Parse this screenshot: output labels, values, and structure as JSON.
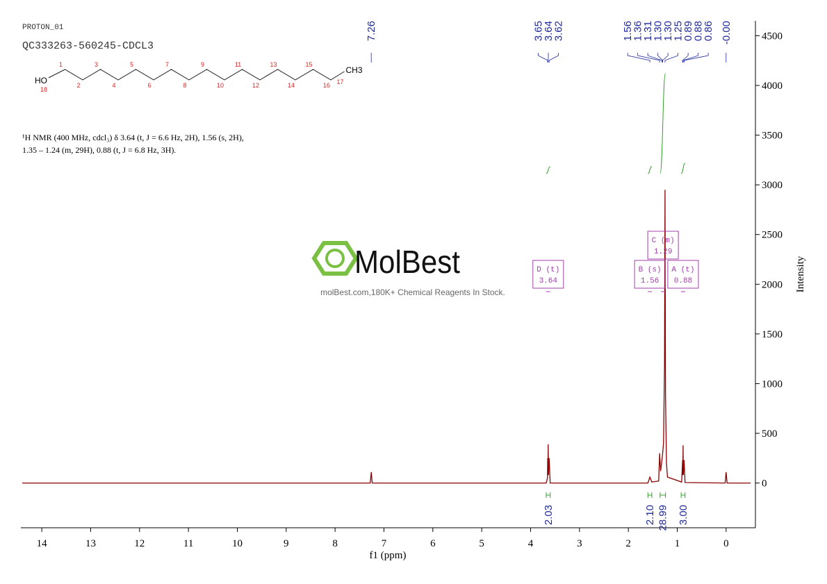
{
  "chart_data": {
    "type": "line",
    "title": "PROTON_01",
    "subtitle": "QC333263-560245-CDCL3",
    "description": [
      "¹H NMR (400 MHz, cdcl₃) δ 3.64 (t, J = 6.6 Hz, 2H), 1.56 (s, 2H),",
      "1.35 – 1.24 (m, 29H), 0.88 (t, J = 6.8 Hz, 3H)."
    ],
    "structure": {
      "hydroxyl": "HO",
      "methyl": "CH3",
      "atom_numbers": [
        1,
        2,
        3,
        4,
        5,
        6,
        7,
        8,
        9,
        10,
        11,
        12,
        13,
        14,
        15,
        16,
        17,
        18
      ]
    },
    "watermark": {
      "logo": "MolBest",
      "tagline": "molBest.com,180K+ Chemical Reagents In Stock."
    },
    "xlabel": "f1 (ppm)",
    "ylabel": "Intensity",
    "xlim": [
      14.4,
      -0.5
    ],
    "xticks": [
      14,
      13,
      12,
      11,
      10,
      9,
      8,
      7,
      6,
      5,
      4,
      3,
      2,
      1,
      0
    ],
    "ylim": [
      -450,
      4650
    ],
    "yticks": [
      0,
      500,
      1000,
      1500,
      2000,
      2500,
      3000,
      3500,
      4000,
      4500
    ],
    "color": "#8b0000",
    "x": [
      14.4,
      7.28,
      7.26,
      7.24,
      3.68,
      3.655,
      3.65,
      3.645,
      3.64,
      3.635,
      3.62,
      3.6,
      1.6,
      1.56,
      1.52,
      1.38,
      1.36,
      1.34,
      1.32,
      1.3,
      1.28,
      1.26,
      1.25,
      1.24,
      1.22,
      1.2,
      0.91,
      0.89,
      0.885,
      0.88,
      0.875,
      0.86,
      0.84,
      0.02,
      0,
      -0.02,
      -0.5
    ],
    "values": [
      0,
      0,
      110,
      0,
      0,
      50,
      250,
      80,
      390,
      80,
      250,
      0,
      0,
      60,
      10,
      20,
      300,
      120,
      200,
      290,
      400,
      1200,
      2950,
      900,
      200,
      60,
      10,
      230,
      80,
      380,
      80,
      230,
      5,
      0,
      110,
      0,
      0
    ],
    "peaks": [
      7.26,
      3.65,
      3.64,
      3.62,
      1.56,
      1.36,
      1.31,
      {
        "value": 1.3,
        "label": "1.30"
      },
      {
        "value": 1.3,
        "label": "1.30"
      },
      1.25,
      0.89,
      0.88,
      0.86,
      {
        "value": 0,
        "label": "-0.00"
      }
    ],
    "integrals": {
      "values": [
        2.03,
        {
          "value": 2.1,
          "label": "2.10"
        },
        28.99,
        {
          "value": 3,
          "label": "3.00"
        }
      ],
      "ranges": [
        [
          3.68,
          3.6
        ],
        [
          1.6,
          1.52
        ],
        [
          1.35,
          1.24
        ],
        [
          0.92,
          0.84
        ]
      ]
    },
    "multiplets": [
      {
        "name": "A (t)",
        "shift": 0.88
      },
      {
        "name": "B (s)",
        "shift": 1.56
      },
      {
        "name": "C (m)",
        "shift": 1.29
      },
      {
        "name": "D (t)",
        "shift": 3.64
      }
    ]
  }
}
